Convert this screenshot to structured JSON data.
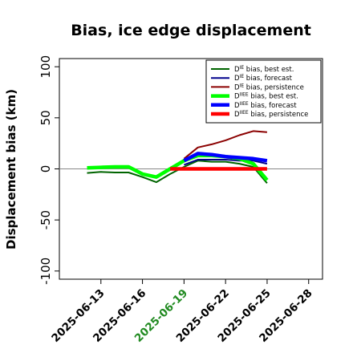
{
  "chart_data": {
    "type": "line",
    "title": "Bias, ice edge displacement",
    "xlabel": "",
    "ylabel": "Displacement bias (km)",
    "ylim": [
      -108,
      108
    ],
    "xlim": [
      "2025-06-10",
      "2025-06-29"
    ],
    "yticks": [
      -100,
      -50,
      0,
      50,
      100
    ],
    "ytick_labels": [
      "-100",
      "-50",
      "0",
      "50",
      "100"
    ],
    "xticks": [
      "2025-06-13",
      "2025-06-16",
      "2025-06-19",
      "2025-06-22",
      "2025-06-25",
      "2025-06-28"
    ],
    "xtick_colors": [
      "#000000",
      "#000000",
      "#228B22",
      "#000000",
      "#000000",
      "#000000"
    ],
    "reference_line_y": 0,
    "grid": false,
    "legend": "top-right",
    "series": [
      {
        "name": "D",
        "sup": "IE",
        "rest": " bias, best est.",
        "color": "#006400",
        "width": 2,
        "x": [
          "2025-06-12",
          "2025-06-13",
          "2025-06-14",
          "2025-06-15",
          "2025-06-16",
          "2025-06-17",
          "2025-06-18",
          "2025-06-19",
          "2025-06-20",
          "2025-06-21",
          "2025-06-22",
          "2025-06-23",
          "2025-06-24",
          "2025-06-25"
        ],
        "values": [
          -4,
          -3,
          -3.5,
          -3.5,
          -8,
          -13,
          -5,
          2,
          8,
          7,
          7,
          5,
          2,
          -14
        ]
      },
      {
        "name": "D",
        "sup": "IE",
        "rest": " bias, forecast",
        "color": "#00008B",
        "width": 2,
        "x": [
          "2025-06-19",
          "2025-06-20",
          "2025-06-21",
          "2025-06-22",
          "2025-06-23",
          "2025-06-24",
          "2025-06-25"
        ],
        "values": [
          4,
          9,
          9,
          9,
          8,
          8,
          5
        ]
      },
      {
        "name": "D",
        "sup": "IE",
        "rest": " bias, persistence",
        "color": "#8B0000",
        "width": 2,
        "x": [
          "2025-06-19",
          "2025-06-20",
          "2025-06-21",
          "2025-06-22",
          "2025-06-23",
          "2025-06-24",
          "2025-06-25"
        ],
        "values": [
          10,
          21,
          24,
          28,
          33,
          37,
          36
        ]
      },
      {
        "name": "D",
        "sup": "IIEE",
        "rest": " bias, best est.",
        "color": "#00FF00",
        "width": 4.5,
        "x": [
          "2025-06-12",
          "2025-06-13",
          "2025-06-14",
          "2025-06-15",
          "2025-06-16",
          "2025-06-17",
          "2025-06-18",
          "2025-06-19",
          "2025-06-20",
          "2025-06-21",
          "2025-06-22",
          "2025-06-23",
          "2025-06-24",
          "2025-06-25"
        ],
        "values": [
          1,
          1.5,
          2,
          2,
          -5,
          -8,
          0,
          8,
          13,
          13,
          12,
          10,
          5,
          -11
        ]
      },
      {
        "name": "D",
        "sup": "IIEE",
        "rest": " bias, forecast",
        "color": "#0000FF",
        "width": 4.5,
        "x": [
          "2025-06-19",
          "2025-06-20",
          "2025-06-21",
          "2025-06-22",
          "2025-06-23",
          "2025-06-24",
          "2025-06-25"
        ],
        "values": [
          8,
          15,
          14,
          12,
          11,
          10,
          8
        ]
      },
      {
        "name": "D",
        "sup": "IIEE",
        "rest": " bias, persistence",
        "color": "#FF0000",
        "width": 4.5,
        "x": [
          "2025-06-18",
          "2025-06-19",
          "2025-06-20",
          "2025-06-21",
          "2025-06-22",
          "2025-06-23",
          "2025-06-24",
          "2025-06-25"
        ],
        "values": [
          0,
          0,
          0,
          0,
          0,
          0,
          0,
          0
        ]
      }
    ]
  }
}
